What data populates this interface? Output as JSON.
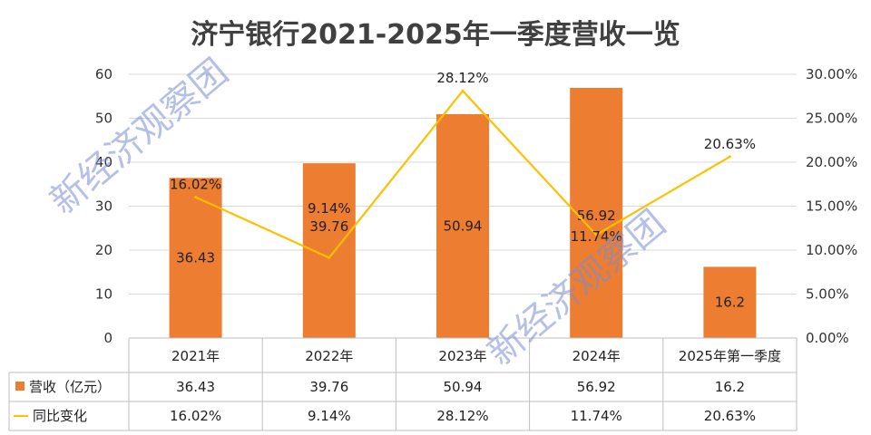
{
  "chart_data": {
    "type": "bar",
    "title": "济宁银行2021-2025年一季度营收一览",
    "categories": [
      "2021年",
      "2022年",
      "2023年",
      "2024年",
      "2025年第一季度"
    ],
    "series": [
      {
        "name": "营收（亿元）",
        "type": "bar",
        "axis": "left",
        "values": [
          36.43,
          39.76,
          50.94,
          56.92,
          16.2
        ],
        "labels": [
          "36.43",
          "39.76",
          "50.94",
          "56.92",
          "16.2"
        ],
        "color": "#ED7D31"
      },
      {
        "name": "同比变化",
        "type": "line",
        "axis": "right",
        "values": [
          16.02,
          9.14,
          28.12,
          11.74,
          20.63
        ],
        "labels": [
          "16.02%",
          "9.14%",
          "28.12%",
          "11.74%",
          "20.63%"
        ],
        "color": "#FFC000"
      }
    ],
    "y_left": {
      "lim": [
        0,
        60
      ],
      "ticks": [
        0,
        10,
        20,
        30,
        40,
        50,
        60
      ],
      "tick_labels": [
        "0",
        "10",
        "20",
        "30",
        "40",
        "50",
        "60"
      ]
    },
    "y_right": {
      "lim": [
        0,
        30
      ],
      "ticks": [
        0,
        5,
        10,
        15,
        20,
        25,
        30
      ],
      "tick_labels": [
        "0.00%",
        "5.00%",
        "10.00%",
        "15.00%",
        "20.00%",
        "25.00%",
        "30.00%"
      ]
    },
    "grid": true,
    "legend": "data-table",
    "data_table": true,
    "watermark": "新经济观察团"
  }
}
